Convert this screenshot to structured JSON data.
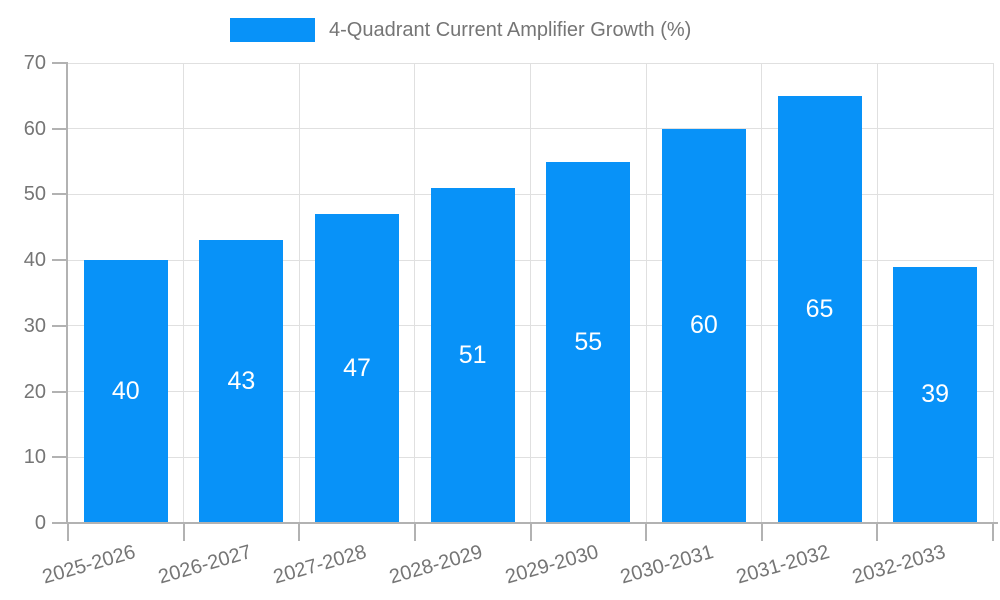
{
  "legend": {
    "label": "4-Quadrant Current Amplifier Growth (%)"
  },
  "colors": {
    "background": "#ffffff",
    "bar": "#0892f8",
    "grid_line": "#e0e0e0",
    "axis_line": "#b2b2b2",
    "tick_label": "#757575",
    "value_label": "#ffffff"
  },
  "chart_data": {
    "type": "bar",
    "title": "4-Quadrant Current Amplifier Growth (%)",
    "categories": [
      "2025-2026",
      "2026-2027",
      "2027-2028",
      "2028-2029",
      "2029-2030",
      "2030-2031",
      "2031-2032",
      "2032-2033"
    ],
    "values": [
      40,
      43,
      47,
      51,
      55,
      60,
      65,
      39
    ],
    "xlabel": "",
    "ylabel": "",
    "ylim": [
      0,
      70
    ],
    "yticks": [
      0,
      10,
      20,
      30,
      40,
      50,
      60,
      70
    ],
    "grid": "both",
    "legend_position": "top",
    "value_label_position": "inside-center",
    "x_label_rotation_deg": -16
  }
}
